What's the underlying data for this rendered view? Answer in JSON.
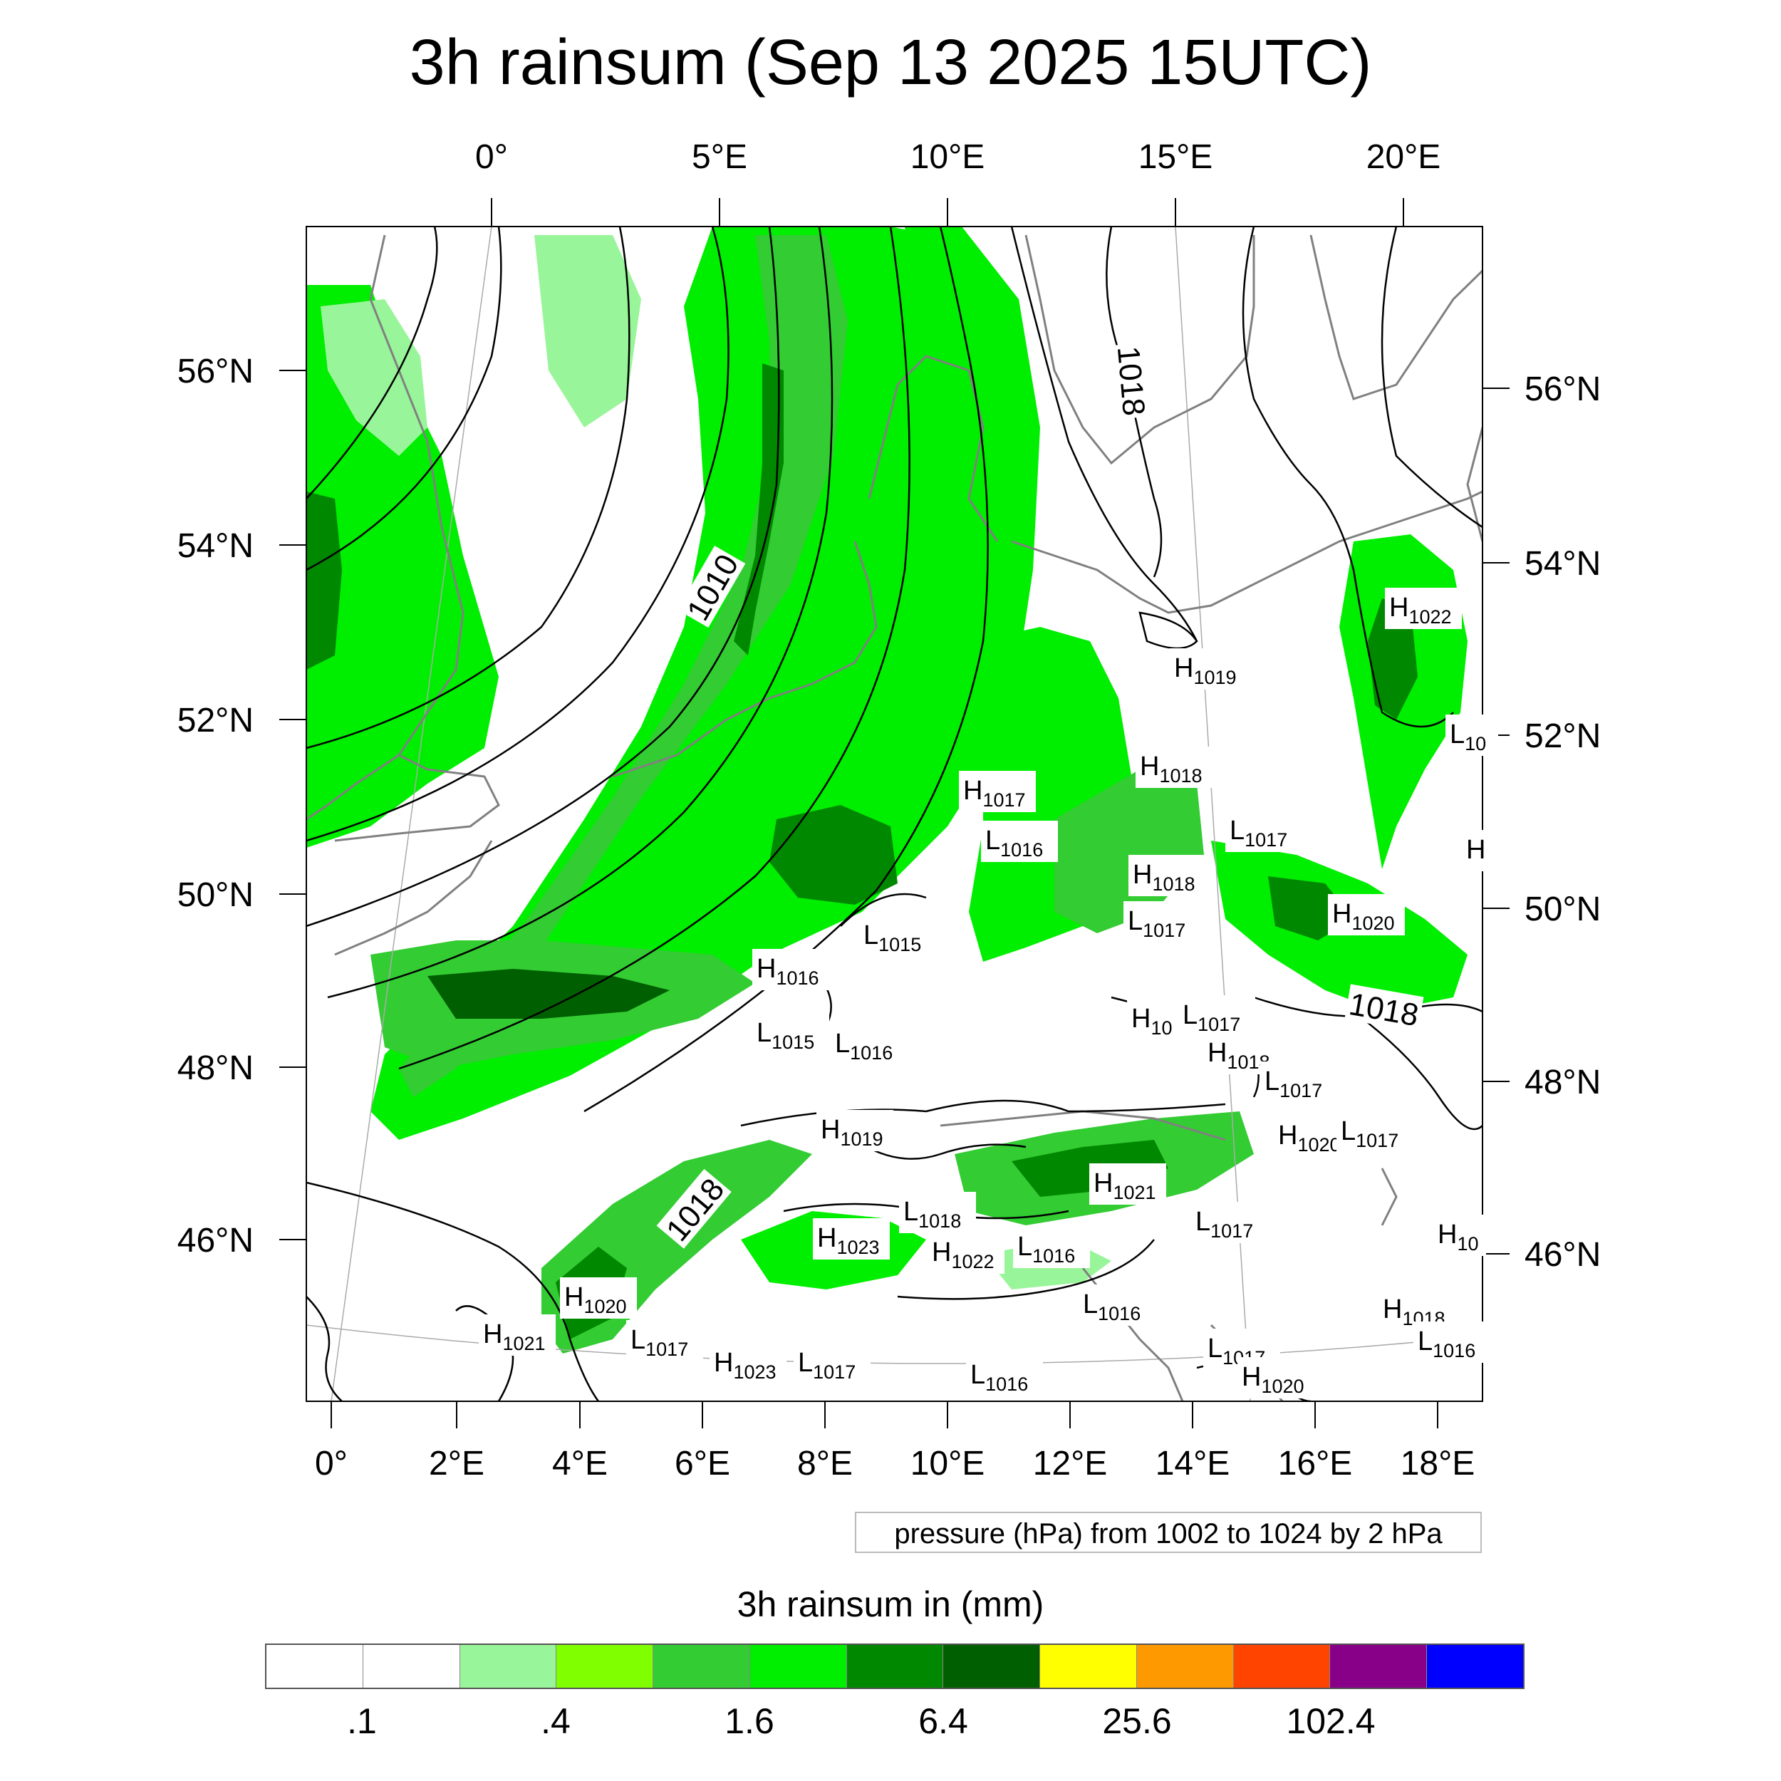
{
  "title": "3h rainsum (Sep 13 2025 15UTC)",
  "top_lon_labels": [
    "0°",
    "5°E",
    "10°E",
    "15°E",
    "20°E"
  ],
  "bottom_lon_labels": [
    "0°",
    "2°E",
    "4°E",
    "6°E",
    "8°E",
    "10°E",
    "12°E",
    "14°E",
    "16°E",
    "18°E"
  ],
  "left_lat_labels": [
    "56°N",
    "54°N",
    "52°N",
    "50°N",
    "48°N",
    "46°N"
  ],
  "right_lat_labels": [
    "56°N",
    "54°N",
    "52°N",
    "50°N",
    "48°N",
    "46°N"
  ],
  "pressure_note": "pressure (hPa) from 1002 to 1024 by 2 hPa",
  "legend_title": "3h rainsum in (mm)",
  "legend_colors": [
    "#ffffff",
    "#ffffff",
    "#99f599",
    "#80ff00",
    "#33cc33",
    "#00ee00",
    "#008800",
    "#005f00",
    "#ffff00",
    "#ff9900",
    "#ff4400",
    "#880088",
    "#0000ff"
  ],
  "legend_ticks": [
    ".1",
    ".4",
    "1.6",
    "6.4",
    "25.6",
    "102.4"
  ],
  "isobar_labels": [
    "1010",
    "1018",
    "1018",
    "1018"
  ],
  "pressure_centers": [
    {
      "kind": "H",
      "value": "1022"
    },
    {
      "kind": "H",
      "value": "1019"
    },
    {
      "kind": "L",
      "value": "10"
    },
    {
      "kind": "H",
      "value": "1018"
    },
    {
      "kind": "H",
      "value": "1017"
    },
    {
      "kind": "L",
      "value": "1016"
    },
    {
      "kind": "L",
      "value": "1017"
    },
    {
      "kind": "H",
      "value": ""
    },
    {
      "kind": "H",
      "value": "1018"
    },
    {
      "kind": "L",
      "value": "1017"
    },
    {
      "kind": "H",
      "value": "1020"
    },
    {
      "kind": "L",
      "value": "1015"
    },
    {
      "kind": "H",
      "value": "1016"
    },
    {
      "kind": "L",
      "value": "1015"
    },
    {
      "kind": "L",
      "value": "1016"
    },
    {
      "kind": "H",
      "value": "10"
    },
    {
      "kind": "L",
      "value": "1017"
    },
    {
      "kind": "H",
      "value": "1018"
    },
    {
      "kind": "L",
      "value": "1017"
    },
    {
      "kind": "H",
      "value": "1019"
    },
    {
      "kind": "H",
      "value": "1020"
    },
    {
      "kind": "L",
      "value": "1017"
    },
    {
      "kind": "H",
      "value": "1021"
    },
    {
      "kind": "L",
      "value": "1018"
    },
    {
      "kind": "L",
      "value": "1017"
    },
    {
      "kind": "H",
      "value": "1023"
    },
    {
      "kind": "H",
      "value": "1022"
    },
    {
      "kind": "L",
      "value": "1016"
    },
    {
      "kind": "H",
      "value": "10"
    },
    {
      "kind": "H",
      "value": "1020"
    },
    {
      "kind": "H",
      "value": "1021"
    },
    {
      "kind": "L",
      "value": "1017"
    },
    {
      "kind": "L",
      "value": "1016"
    },
    {
      "kind": "H",
      "value": "1018"
    },
    {
      "kind": "L",
      "value": "1016"
    },
    {
      "kind": "H",
      "value": "1023"
    },
    {
      "kind": "L",
      "value": "1017"
    },
    {
      "kind": "L",
      "value": "1016"
    },
    {
      "kind": "L",
      "value": "1017"
    },
    {
      "kind": "H",
      "value": "1020"
    }
  ]
}
